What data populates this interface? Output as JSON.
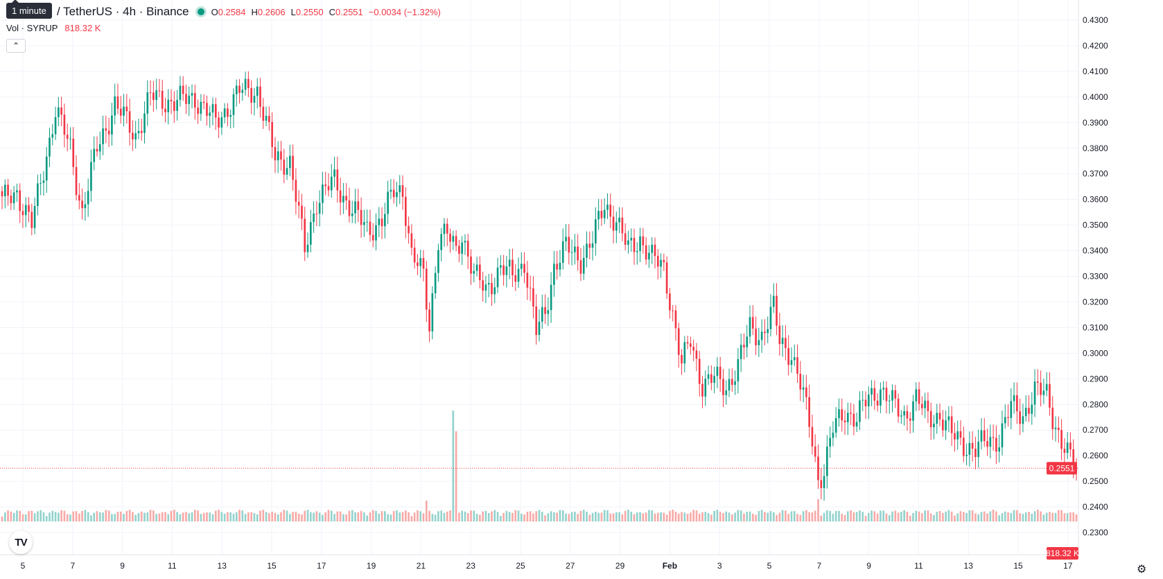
{
  "header": {
    "tooltip": "1 minute",
    "symbol": "/ TetherUS · 4h · Binance",
    "ohlc": [
      {
        "k": "O",
        "v": "0.2584"
      },
      {
        "k": "H",
        "v": "0.2606"
      },
      {
        "k": "L",
        "v": "0.2550"
      },
      {
        "k": "C",
        "v": "0.2551"
      }
    ],
    "change": "−0.0034 (−1.32%)",
    "vol_label": "Vol · SYRUP",
    "vol_value": "818.32 K",
    "logo": "TV",
    "collapse_icon": "chevron-up-icon",
    "settings_icon": "gear-icon"
  },
  "colors": {
    "up": "#089981",
    "down": "#f23645",
    "up_vol": "#92d2cc",
    "down_vol": "#f7a9a7",
    "grid": "#f0f3fa"
  },
  "chart_data": {
    "type": "candlestick",
    "y_ticks": [
      "0.4300",
      "0.4200",
      "0.4100",
      "0.4000",
      "0.3900",
      "0.3800",
      "0.3700",
      "0.3600",
      "0.3500",
      "0.3400",
      "0.3300",
      "0.3200",
      "0.3100",
      "0.3000",
      "0.2900",
      "0.2800",
      "0.2700",
      "0.2600",
      "0.2500",
      "0.2400",
      "0.2300"
    ],
    "ylim": [
      0.23,
      0.43
    ],
    "x_ticks": [
      "5",
      "7",
      "9",
      "11",
      "13",
      "15",
      "17",
      "19",
      "21",
      "23",
      "25",
      "27",
      "29",
      "Feb",
      "3",
      "5",
      "7",
      "9",
      "11",
      "13",
      "15",
      "17"
    ],
    "last_price_label": "0.2551",
    "volume_label": "818.32 K",
    "keypoints": [
      {
        "i": 0,
        "c": 0.359
      },
      {
        "i": 5,
        "c": 0.363
      },
      {
        "i": 10,
        "c": 0.35
      },
      {
        "i": 14,
        "c": 0.372
      },
      {
        "i": 18,
        "c": 0.395
      },
      {
        "i": 23,
        "c": 0.38
      },
      {
        "i": 27,
        "c": 0.355
      },
      {
        "i": 32,
        "c": 0.38
      },
      {
        "i": 38,
        "c": 0.397
      },
      {
        "i": 45,
        "c": 0.385
      },
      {
        "i": 50,
        "c": 0.4
      },
      {
        "i": 58,
        "c": 0.398
      },
      {
        "i": 65,
        "c": 0.4
      },
      {
        "i": 72,
        "c": 0.39
      },
      {
        "i": 80,
        "c": 0.402
      },
      {
        "i": 86,
        "c": 0.403
      },
      {
        "i": 92,
        "c": 0.376
      },
      {
        "i": 97,
        "c": 0.375
      },
      {
        "i": 102,
        "c": 0.34
      },
      {
        "i": 106,
        "c": 0.36
      },
      {
        "i": 112,
        "c": 0.367
      },
      {
        "i": 118,
        "c": 0.356
      },
      {
        "i": 123,
        "c": 0.348
      },
      {
        "i": 128,
        "c": 0.352
      },
      {
        "i": 132,
        "c": 0.363
      },
      {
        "i": 135,
        "c": 0.364
      },
      {
        "i": 138,
        "c": 0.338
      },
      {
        "i": 142,
        "c": 0.33
      },
      {
        "i": 144,
        "c": 0.311
      },
      {
        "i": 147,
        "c": 0.345
      },
      {
        "i": 150,
        "c": 0.346
      },
      {
        "i": 153,
        "c": 0.34
      },
      {
        "i": 155,
        "c": 0.347
      },
      {
        "i": 159,
        "c": 0.33
      },
      {
        "i": 163,
        "c": 0.325
      },
      {
        "i": 168,
        "c": 0.333
      },
      {
        "i": 172,
        "c": 0.33
      },
      {
        "i": 176,
        "c": 0.336
      },
      {
        "i": 180,
        "c": 0.308
      },
      {
        "i": 183,
        "c": 0.316
      },
      {
        "i": 186,
        "c": 0.334
      },
      {
        "i": 190,
        "c": 0.341
      },
      {
        "i": 195,
        "c": 0.337
      },
      {
        "i": 199,
        "c": 0.344
      },
      {
        "i": 203,
        "c": 0.358
      },
      {
        "i": 207,
        "c": 0.352
      },
      {
        "i": 211,
        "c": 0.34
      },
      {
        "i": 215,
        "c": 0.345
      },
      {
        "i": 219,
        "c": 0.337
      },
      {
        "i": 223,
        "c": 0.333
      },
      {
        "i": 226,
        "c": 0.316
      },
      {
        "i": 229,
        "c": 0.295
      },
      {
        "i": 232,
        "c": 0.305
      },
      {
        "i": 236,
        "c": 0.288
      },
      {
        "i": 240,
        "c": 0.29
      },
      {
        "i": 244,
        "c": 0.287
      },
      {
        "i": 248,
        "c": 0.295
      },
      {
        "i": 252,
        "c": 0.31
      },
      {
        "i": 256,
        "c": 0.307
      },
      {
        "i": 260,
        "c": 0.317
      },
      {
        "i": 262,
        "c": 0.305
      },
      {
        "i": 266,
        "c": 0.3
      },
      {
        "i": 270,
        "c": 0.283
      },
      {
        "i": 273,
        "c": 0.267
      },
      {
        "i": 275,
        "c": 0.251
      },
      {
        "i": 277,
        "c": 0.254
      },
      {
        "i": 280,
        "c": 0.27
      },
      {
        "i": 284,
        "c": 0.278
      },
      {
        "i": 288,
        "c": 0.274
      },
      {
        "i": 292,
        "c": 0.283
      },
      {
        "i": 296,
        "c": 0.286
      },
      {
        "i": 300,
        "c": 0.28
      },
      {
        "i": 304,
        "c": 0.276
      },
      {
        "i": 308,
        "c": 0.282
      },
      {
        "i": 312,
        "c": 0.275
      },
      {
        "i": 316,
        "c": 0.276
      },
      {
        "i": 320,
        "c": 0.268
      },
      {
        "i": 324,
        "c": 0.265
      },
      {
        "i": 328,
        "c": 0.262
      },
      {
        "i": 332,
        "c": 0.266
      },
      {
        "i": 336,
        "c": 0.267
      },
      {
        "i": 340,
        "c": 0.279
      },
      {
        "i": 344,
        "c": 0.276
      },
      {
        "i": 348,
        "c": 0.285
      },
      {
        "i": 352,
        "c": 0.284
      },
      {
        "i": 354,
        "c": 0.276
      },
      {
        "i": 357,
        "c": 0.265
      },
      {
        "i": 360,
        "c": 0.258
      },
      {
        "i": 362,
        "c": 0.2551
      }
    ],
    "volume_spikes": [
      {
        "i": 152,
        "v": 0.8
      },
      {
        "i": 153,
        "v": 0.65
      },
      {
        "i": 143,
        "v": 0.15
      },
      {
        "i": 275,
        "v": 0.16
      }
    ]
  }
}
